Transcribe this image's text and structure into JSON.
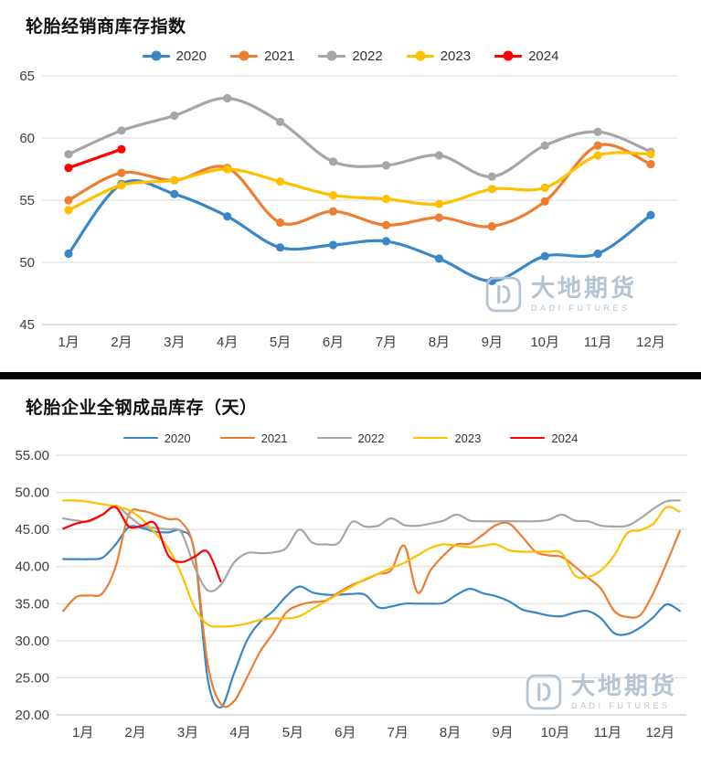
{
  "watermark": {
    "brand": "大地期货",
    "sub": "DADI FUTURES",
    "color": "#b6c4d2"
  },
  "chart_data": [
    {
      "type": "line",
      "title": "轮胎经销商库存指数",
      "legend_position": "top",
      "legend_style": "line-dot",
      "grid": true,
      "markers": true,
      "points_per_month": 1,
      "x_labels": [
        "1月",
        "2月",
        "3月",
        "4月",
        "5月",
        "6月",
        "7月",
        "8月",
        "9月",
        "10月",
        "11月",
        "12月"
      ],
      "ylim": [
        45,
        65
      ],
      "y_ticks": [
        45,
        50,
        55,
        60,
        65
      ],
      "y_tick_labels": [
        "45",
        "50",
        "55",
        "60",
        "65"
      ],
      "series": [
        {
          "name": "2020",
          "color": "#3A87C8",
          "values": [
            50.7,
            56.3,
            55.5,
            53.7,
            51.2,
            51.4,
            51.7,
            50.3,
            48.5,
            50.5,
            50.7,
            53.8
          ]
        },
        {
          "name": "2021",
          "color": "#ED7D31",
          "values": [
            55.0,
            57.2,
            56.6,
            57.6,
            53.2,
            54.1,
            53.0,
            53.6,
            52.9,
            54.9,
            59.4,
            57.9
          ]
        },
        {
          "name": "2022",
          "color": "#A6A6A6",
          "values": [
            58.7,
            60.6,
            61.8,
            63.2,
            61.3,
            58.1,
            57.8,
            58.6,
            56.9,
            59.4,
            60.5,
            58.9
          ]
        },
        {
          "name": "2023",
          "color": "#FFC000",
          "values": [
            54.2,
            56.2,
            56.6,
            57.5,
            56.5,
            55.4,
            55.1,
            54.7,
            55.9,
            56.0,
            58.6,
            58.7
          ]
        },
        {
          "name": "2024",
          "color": "#FF0000",
          "values": [
            57.6,
            59.1
          ]
        }
      ]
    },
    {
      "type": "line",
      "title": "轮胎企业全钢成品库存（天）",
      "legend_position": "top",
      "legend_style": "line",
      "grid": true,
      "markers": false,
      "points_per_month": 4,
      "x_labels": [
        "1月",
        "2月",
        "3月",
        "4月",
        "5月",
        "6月",
        "7月",
        "8月",
        "9月",
        "10月",
        "11月",
        "12月"
      ],
      "ylim": [
        20,
        55
      ],
      "y_ticks": [
        20,
        25,
        30,
        35,
        40,
        45,
        50,
        55
      ],
      "y_tick_labels": [
        "20.00",
        "25.00",
        "30.00",
        "35.00",
        "40.00",
        "45.00",
        "50.00",
        "55.00"
      ],
      "series": [
        {
          "name": "2020",
          "color": "#3A87C8",
          "values": [
            41,
            41,
            41,
            41.2,
            43,
            45.3,
            45.2,
            44.7,
            44.6,
            44.8,
            42,
            25,
            21,
            25.5,
            30,
            32.5,
            34,
            36,
            37.3,
            36.5,
            36.2,
            36.2,
            36.3,
            36.2,
            34.5,
            34.6,
            35,
            35,
            35,
            35.1,
            36.2,
            37,
            36.4,
            36,
            35.3,
            34.2,
            33.8,
            33.4,
            33.3,
            33.8,
            34,
            33,
            31,
            30.9,
            31.8,
            33.2,
            34.9,
            34
          ]
        },
        {
          "name": "2021",
          "color": "#ED7D31",
          "values": [
            34,
            35.9,
            36.1,
            36.4,
            40,
            47,
            47.5,
            47,
            46.4,
            46,
            42,
            27,
            21.5,
            21.8,
            25,
            28.5,
            31,
            33.8,
            34.8,
            35.2,
            35.4,
            36.5,
            37.5,
            38.2,
            39,
            39.5,
            42.8,
            36.5,
            39.5,
            41.5,
            43,
            43.1,
            44.3,
            45.6,
            45.8,
            44,
            42,
            41.5,
            41.3,
            40,
            38.5,
            37,
            34,
            33.2,
            33.5,
            36.5,
            40.5,
            44.8
          ]
        },
        {
          "name": "2022",
          "color": "#A6A6A6",
          "values": [
            46.5,
            46.2,
            46.1,
            47,
            48.2,
            46.8,
            45.5,
            45.2,
            45,
            44.6,
            40,
            36.8,
            37.5,
            40.5,
            41.8,
            41.8,
            41.9,
            42.5,
            45,
            43.2,
            43,
            43.2,
            46,
            45.4,
            45.5,
            46.5,
            45.6,
            45.5,
            45.8,
            46.2,
            47,
            46.2,
            46.1,
            46.1,
            46.1,
            46.1,
            46.1,
            46.3,
            47,
            46.2,
            46.1,
            45.5,
            45.4,
            45.5,
            46.5,
            47.8,
            48.8,
            48.9
          ]
        },
        {
          "name": "2023",
          "color": "#FFC000",
          "values": [
            48.9,
            48.9,
            48.7,
            48.4,
            48.1,
            47.6,
            46.4,
            44.5,
            42.5,
            39,
            34.5,
            32.2,
            31.9,
            32,
            32.3,
            32.8,
            33,
            33,
            33.3,
            34.3,
            35.3,
            36.3,
            37.3,
            38.3,
            39,
            39.8,
            40.5,
            41.5,
            42.5,
            43,
            42.8,
            42.6,
            42.8,
            43,
            42.2,
            42,
            42,
            42,
            41.8,
            38.8,
            38.6,
            39.5,
            41.5,
            44.5,
            44.9,
            45.8,
            48,
            47.4
          ]
        },
        {
          "name": "2024",
          "color": "#FF0000",
          "values": [
            45.1,
            45.8,
            46.2,
            47,
            48,
            45.4,
            45.5,
            45.8,
            41.5,
            40.6,
            41.3,
            42,
            38
          ]
        }
      ]
    }
  ]
}
